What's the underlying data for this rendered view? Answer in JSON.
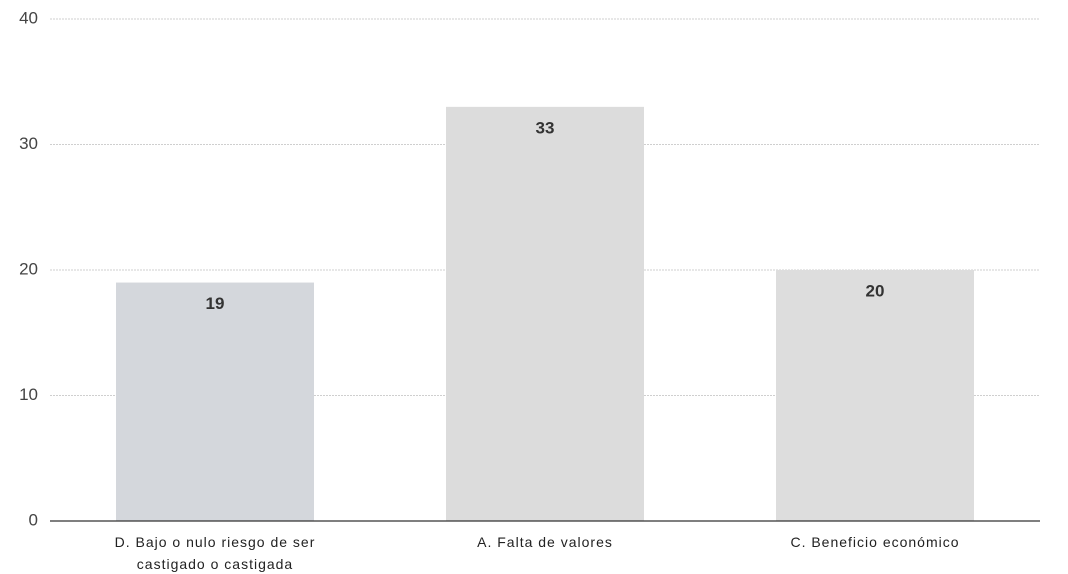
{
  "chart_data": {
    "type": "bar",
    "categories": [
      "D. Bajo o nulo riesgo de ser castigado o castigada",
      "A. Falta de valores",
      "C. Beneficio económico"
    ],
    "values": [
      19,
      33,
      20
    ],
    "colors": [
      "#d4d7dc",
      "#dcdcdc",
      "#dddddd"
    ],
    "ylim": [
      0,
      40
    ],
    "yticks": [
      0,
      10,
      20,
      30,
      40
    ],
    "grid": true
  }
}
